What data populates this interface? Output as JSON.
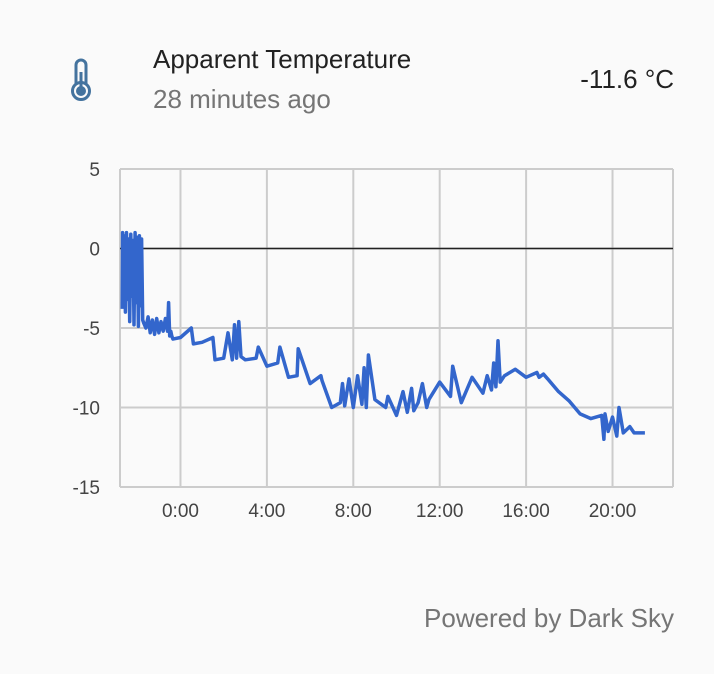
{
  "header": {
    "title": "Apparent Temperature",
    "subtitle": "28 minutes ago",
    "value": "-11.6 °C",
    "icon": "thermometer-icon",
    "icon_color": "#44739e"
  },
  "footer": {
    "attribution": "Powered by Dark Sky"
  },
  "chart_data": {
    "type": "line",
    "title": "",
    "xlabel": "",
    "ylabel": "",
    "xlim_hours": [
      -2.8,
      22.8
    ],
    "ylim": [
      -15,
      5
    ],
    "x_ticks": [
      {
        "hour": 0,
        "label": "0:00"
      },
      {
        "hour": 4,
        "label": "4:00"
      },
      {
        "hour": 8,
        "label": "8:00"
      },
      {
        "hour": 12,
        "label": "12:00"
      },
      {
        "hour": 16,
        "label": "16:00"
      },
      {
        "hour": 20,
        "label": "20:00"
      }
    ],
    "y_ticks": [
      {
        "value": 5,
        "label": "5"
      },
      {
        "value": 0,
        "label": "0"
      },
      {
        "value": -5,
        "label": "-5"
      },
      {
        "value": -10,
        "label": "-10"
      },
      {
        "value": -15,
        "label": "-15"
      }
    ],
    "grid": true,
    "zero_line": true,
    "line_color": "#3366cc",
    "series": [
      {
        "x_hours": [
          -2.7,
          -2.68,
          -2.65,
          -2.6,
          -2.55,
          -2.5,
          -2.45,
          -2.4,
          -2.35,
          -2.3,
          -2.25,
          -2.2,
          -2.15,
          -2.1,
          -2.05,
          -2.0,
          -1.95,
          -1.9,
          -1.85,
          -1.8,
          -1.75,
          -1.7,
          -1.6,
          -1.5,
          -1.4,
          -1.3,
          -1.2,
          -1.1,
          -1.0,
          -0.9,
          -0.8,
          -0.7,
          -0.6,
          -0.55,
          -0.5,
          -0.45,
          -0.4,
          -0.35,
          0.0,
          0.5,
          0.6,
          1.0,
          1.5,
          1.6,
          2.0,
          2.2,
          2.4,
          2.5,
          2.6,
          2.7,
          2.8,
          3.0,
          3.5,
          3.6,
          4.0,
          4.5,
          4.6,
          5.0,
          5.4,
          5.45,
          6.0,
          6.5,
          6.55,
          7.0,
          7.4,
          7.5,
          7.6,
          7.8,
          8.0,
          8.2,
          8.4,
          8.5,
          8.6,
          8.7,
          9.0,
          9.5,
          9.6,
          10.0,
          10.3,
          10.5,
          10.7,
          10.8,
          11.0,
          11.2,
          11.4,
          11.5,
          12.0,
          12.5,
          12.6,
          13.0,
          13.5,
          14.0,
          14.2,
          14.4,
          14.5,
          14.6,
          14.7,
          14.8,
          15.0,
          15.5,
          16.0,
          16.5,
          16.6,
          16.8,
          17.0,
          17.5,
          18.0,
          18.5,
          19.0,
          19.5,
          19.6,
          19.65,
          19.8,
          20.0,
          20.2,
          20.3,
          20.5,
          20.8,
          21.0,
          21.5
        ],
        "y": [
          -3.8,
          1.0,
          -3.5,
          0.8,
          -4.0,
          1.0,
          -3.2,
          0.6,
          -4.6,
          0.9,
          -3.0,
          0.5,
          -4.8,
          1.0,
          -3.4,
          0.7,
          -4.9,
          0.8,
          -3.6,
          0.6,
          -4.5,
          -4.7,
          -5.0,
          -4.3,
          -5.3,
          -4.5,
          -5.4,
          -4.4,
          -5.3,
          -4.6,
          -5.2,
          -4.4,
          -5.2,
          -3.4,
          -5.5,
          -5.2,
          -5.5,
          -5.7,
          -5.6,
          -5.0,
          -6.0,
          -5.9,
          -5.6,
          -7.0,
          -6.9,
          -5.3,
          -7.0,
          -4.8,
          -6.9,
          -4.6,
          -6.8,
          -7.0,
          -6.9,
          -6.2,
          -7.4,
          -7.2,
          -6.2,
          -8.1,
          -8.0,
          -6.3,
          -8.5,
          -8.0,
          -8.3,
          -10.0,
          -9.7,
          -8.5,
          -9.9,
          -8.2,
          -10.0,
          -8.0,
          -9.8,
          -7.5,
          -10.0,
          -6.7,
          -9.5,
          -10.0,
          -9.3,
          -10.5,
          -9.0,
          -10.3,
          -8.8,
          -10.2,
          -9.7,
          -8.5,
          -10.0,
          -9.5,
          -8.4,
          -9.3,
          -7.4,
          -9.7,
          -8.1,
          -9.1,
          -8.0,
          -8.9,
          -7.2,
          -8.7,
          -5.8,
          -8.4,
          -8.0,
          -7.6,
          -8.1,
          -7.8,
          -8.1,
          -7.9,
          -8.2,
          -9.0,
          -9.6,
          -10.4,
          -10.7,
          -10.5,
          -12.0,
          -10.4,
          -11.5,
          -10.6,
          -11.8,
          -10.0,
          -11.6,
          -11.2,
          -11.6,
          -11.6
        ]
      }
    ]
  }
}
